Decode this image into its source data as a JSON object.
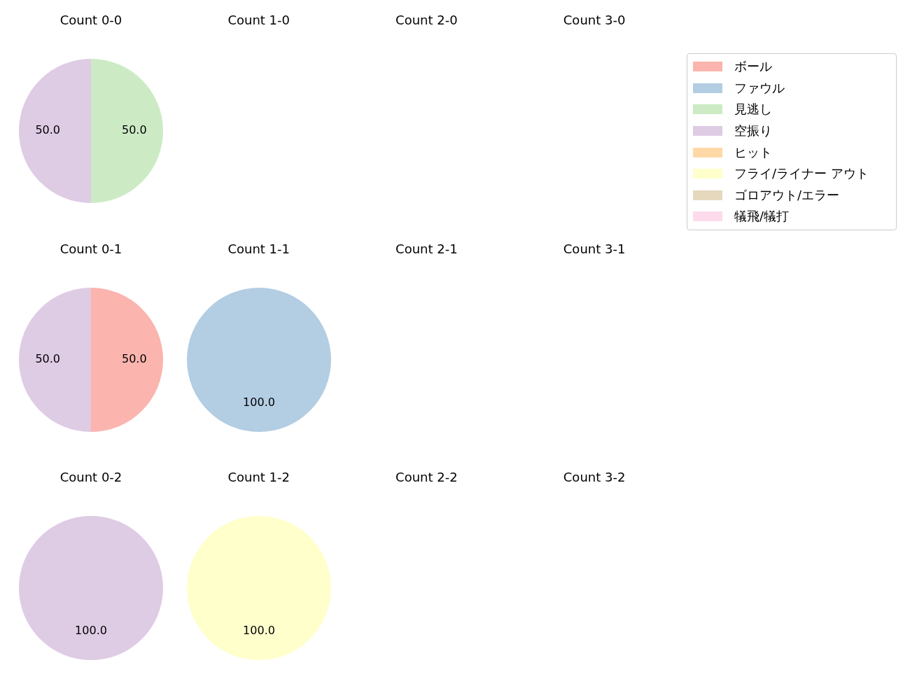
{
  "chart_data": [
    {
      "type": "pie",
      "title": "Count 0-0",
      "categories": [
        "ボール",
        "ファウル",
        "見逃し",
        "空振り",
        "ヒット",
        "フライ/ライナー アウト",
        "ゴロアウト/エラー",
        "犠飛/犠打"
      ],
      "values": [
        0,
        0,
        50,
        50,
        0,
        0,
        0,
        0
      ],
      "colors": [
        "#fbb4ae",
        "#b3cde3",
        "#ccebc5",
        "#decbe4",
        "#fed9a6",
        "#ffffcc",
        "#e5d8bd",
        "#fddaec"
      ],
      "value_labels": [
        null,
        null,
        "50.0",
        "50.0",
        null,
        null,
        null,
        null
      ],
      "legend": "right"
    },
    {
      "type": "other",
      "title": "Count 1-0"
    },
    {
      "type": "other",
      "title": "Count 2-0"
    },
    {
      "type": "other",
      "title": "Count 3-0"
    },
    {
      "type": "pie",
      "title": "Count 0-1",
      "categories": [
        null,
        null
      ],
      "values": [
        50,
        50
      ],
      "colors": [
        "#fbb4ae",
        "#decbe4"
      ],
      "value_labels": [
        "50.0",
        "50.0"
      ]
    },
    {
      "type": "pie",
      "title": "Count 1-1",
      "categories": [
        null
      ],
      "values": [
        100
      ],
      "colors": [
        "#b3cde3"
      ],
      "value_labels": [
        "100.0"
      ]
    },
    {
      "type": "other",
      "title": "Count 2-1"
    },
    {
      "type": "other",
      "title": "Count 3-1"
    },
    {
      "type": "pie",
      "title": "Count 0-2",
      "categories": [
        null
      ],
      "values": [
        100
      ],
      "colors": [
        "#decbe4"
      ],
      "value_labels": [
        "100.0"
      ]
    },
    {
      "type": "pie",
      "title": "Count 1-2",
      "categories": [
        null
      ],
      "values": [
        100
      ],
      "colors": [
        "#ffffcc"
      ],
      "value_labels": [
        "100.0"
      ]
    },
    {
      "type": "other",
      "title": "Count 2-2"
    },
    {
      "type": "other",
      "title": "Count 3-2"
    }
  ]
}
